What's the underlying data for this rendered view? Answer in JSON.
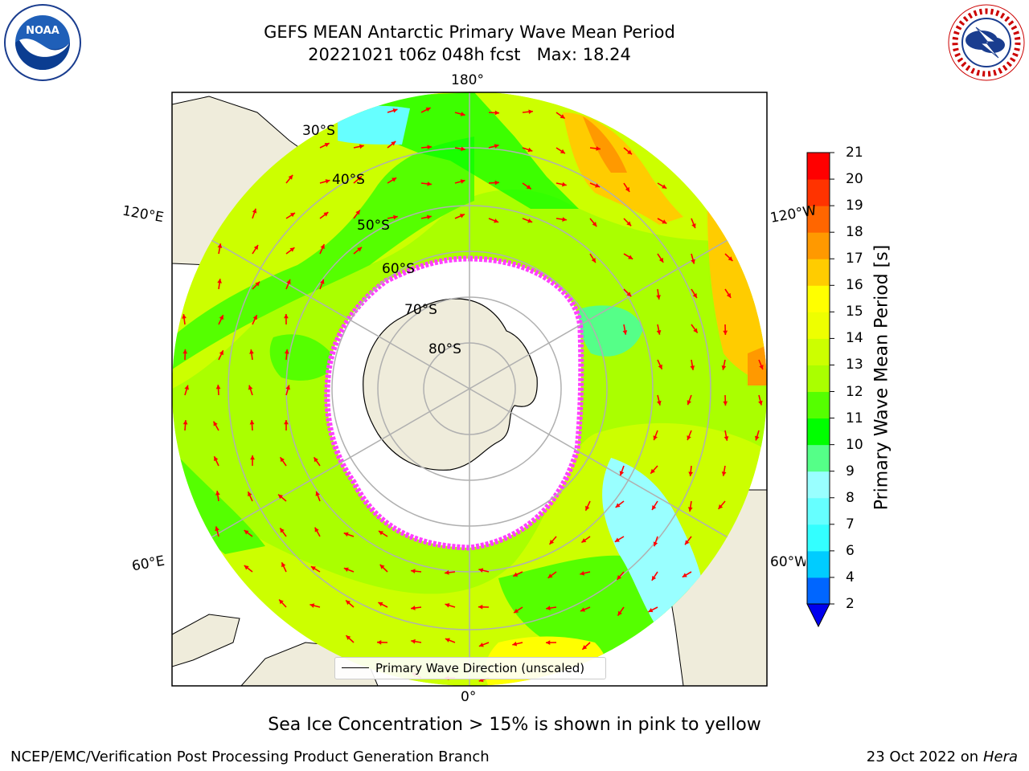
{
  "header": {
    "title_line1": "GEFS MEAN Antarctic Primary Wave Mean Period",
    "title_line2": "20221021 t06z 048h fcst   Max: 18.24"
  },
  "logos": {
    "noaa_text": "NOAA",
    "noaa_ring_text": "NATIONAL OCEANIC AND ATMOSPHERIC ADMINISTRATION · U.S. DEPARTMENT OF COMMERCE",
    "nws_ring_text": "NATIONAL WEATHER SERVICE"
  },
  "map": {
    "lon_labels": {
      "top": "180°",
      "bottom": "0°",
      "upper_left": "120°E",
      "upper_right": "120°W",
      "lower_left": "60°E",
      "lower_right": "60°W"
    },
    "lat_labels": [
      "30°S",
      "40°S",
      "50°S",
      "60°S",
      "70°S",
      "80°S"
    ],
    "legend_label": "Primary Wave Direction (unscaled)",
    "colors": {
      "land": "#efecdb",
      "ice_edge": "#ff40ff",
      "arrow": "#ff0000",
      "grid": "#b0b0b0"
    }
  },
  "colorbar": {
    "label": "Primary Wave Mean Period [s]",
    "ticks": [
      "2",
      "4",
      "6",
      "7",
      "8",
      "9",
      "10",
      "11",
      "12",
      "13",
      "14",
      "15",
      "16",
      "17",
      "18",
      "19",
      "20",
      "21"
    ],
    "colors": [
      "#0066ff",
      "#00ccff",
      "#33ffff",
      "#66ffff",
      "#99ffff",
      "#55ff88",
      "#00ff00",
      "#55ff00",
      "#aaff00",
      "#ccff00",
      "#eeff00",
      "#ffff00",
      "#ffcc00",
      "#ff9900",
      "#ff6600",
      "#ff3300",
      "#ff0000"
    ],
    "extend_color": "#0000ee"
  },
  "note": "Sea Ice Concentration > 15% is shown in pink to yellow",
  "footer": {
    "left": "NCEP/EMC/Verification Post Processing Product Generation Branch",
    "date": "23 Oct 2022 on ",
    "host": "Hera"
  }
}
